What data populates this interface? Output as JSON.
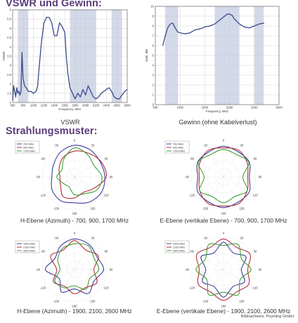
{
  "headings": {
    "main": "VSWR und Gewinn:",
    "pattern": "Strahlungsmuster:"
  },
  "credit": "Bildnachweis: Poynting GmbH",
  "colors": {
    "heading": "#5a3d7a",
    "band": "#d3d9e8",
    "line": "#3a4a8c",
    "s1": "#3e3fa0",
    "s2": "#b0303c",
    "s3": "#3f9f3a",
    "grid": "#c8c8c8"
  },
  "chart_data": [
    {
      "type": "line",
      "id": "vswr",
      "title": "VSWR",
      "xlabel": "Frequency, MHz",
      "ylabel": "VSWR",
      "xlim": [
        600,
        2800
      ],
      "ylim": [
        1,
        6
      ],
      "xticks": [
        "600",
        "800",
        "1000",
        "1200",
        "1400",
        "1600",
        "1800",
        "2000",
        "2200",
        "2400",
        "2600",
        "2800"
      ],
      "yticks": [
        "1",
        "1.5",
        "2",
        "2.5",
        "3",
        "3.5",
        "4",
        "4.5",
        "5",
        "5.5",
        "6"
      ],
      "bands": [
        [
          700,
          900
        ],
        [
          1700,
          2200
        ],
        [
          2500,
          2700
        ]
      ],
      "x": [
        600,
        620,
        640,
        660,
        680,
        700,
        720,
        740,
        760,
        780,
        800,
        830,
        860,
        900,
        950,
        1000,
        1050,
        1080,
        1100,
        1150,
        1200,
        1250,
        1300,
        1350,
        1400,
        1450,
        1500,
        1550,
        1600,
        1630,
        1660,
        1700,
        1750,
        1800,
        1850,
        1900,
        1950,
        2000,
        2050,
        2100,
        2150,
        2200,
        2250,
        2300,
        2350,
        2400,
        2450,
        2500,
        2550,
        2600,
        2650,
        2700,
        2750,
        2800
      ],
      "y": [
        1.1,
        1.9,
        1.6,
        1.3,
        1.8,
        1.5,
        1.6,
        1.4,
        1.6,
        3.7,
        2.3,
        1.9,
        1.8,
        1.6,
        1.6,
        1.5,
        1.6,
        1.9,
        2.6,
        4.2,
        5.3,
        5.6,
        5.6,
        5.3,
        4.6,
        4.6,
        5.3,
        5.1,
        4.8,
        3.5,
        2.6,
        1.8,
        1.5,
        1.2,
        1.5,
        1.3,
        1.7,
        1.4,
        1.9,
        1.6,
        1.3,
        1.2,
        1.3,
        1.5,
        1.6,
        1.7,
        1.8,
        1.6,
        1.3,
        1.2,
        1.2,
        1.4,
        1.6,
        1.7
      ]
    },
    {
      "type": "line",
      "id": "gain",
      "title": "Gewinn (ohne Kabelverlust)",
      "xlabel": "Frequency, MHz",
      "ylabel": "Gain, dBi",
      "xlim": [
        500,
        3000
      ],
      "ylim": [
        0,
        10
      ],
      "xticks": [
        "500",
        "1000",
        "1500",
        "2000",
        "2500",
        "3000"
      ],
      "yticks": [
        "0",
        "1",
        "2",
        "3",
        "4",
        "5",
        "6",
        "7",
        "8",
        "9",
        "10"
      ],
      "bands": [
        [
          700,
          960
        ],
        [
          1700,
          2200
        ],
        [
          2500,
          2690
        ]
      ],
      "x": [
        650,
        700,
        750,
        800,
        850,
        900,
        950,
        1000,
        1100,
        1200,
        1300,
        1400,
        1500,
        1600,
        1700,
        1800,
        1900,
        1950,
        2000,
        2050,
        2100,
        2200,
        2300,
        2400,
        2500,
        2600,
        2700
      ],
      "y": [
        6.0,
        7.0,
        7.8,
        8.2,
        8.3,
        7.8,
        7.4,
        7.3,
        7.2,
        7.3,
        7.6,
        7.7,
        7.9,
        8.0,
        8.2,
        8.6,
        9.0,
        9.2,
        9.2,
        9.1,
        8.7,
        8.2,
        7.9,
        7.8,
        8.0,
        8.2,
        8.3
      ]
    },
    {
      "type": "polar",
      "id": "h-low",
      "title": "H-Ebene (Azimuth) - 700, 900, 1700 MHz",
      "angle_labels": [
        "0",
        "30",
        "60",
        "90",
        "120",
        "150",
        "180",
        "-150",
        "-120",
        "-90",
        "-60",
        "-30"
      ],
      "series": [
        {
          "name": "700 MHz",
          "r": [
            0.98,
            0.97,
            0.92,
            0.94,
            0.96,
            0.9,
            0.8,
            0.85,
            0.8,
            0.7,
            0.75,
            0.88
          ]
        },
        {
          "name": "900 MHz",
          "r": [
            0.8,
            0.85,
            0.95,
            0.98,
            0.7,
            0.55,
            0.65,
            0.7,
            0.5,
            0.45,
            0.55,
            0.7
          ]
        },
        {
          "name": "1700 MHz",
          "r": [
            0.9,
            0.8,
            0.7,
            0.85,
            0.8,
            0.6,
            0.55,
            0.35,
            0.4,
            0.55,
            0.45,
            0.65
          ]
        }
      ]
    },
    {
      "type": "polar",
      "id": "e-low",
      "title": "E-Ebene (vertikale Ebene) - 700, 900, 1700 MHz",
      "angle_labels": [
        "0",
        "30",
        "60",
        "90",
        "120",
        "150",
        "180",
        "-150",
        "-120",
        "-90",
        "-60",
        "-30"
      ],
      "series": [
        {
          "name": "700 MHz",
          "r": [
            0.95,
            0.9,
            0.92,
            0.8,
            0.92,
            0.9,
            0.95,
            0.9,
            0.92,
            0.8,
            0.92,
            0.9
          ]
        },
        {
          "name": "900 MHz",
          "r": [
            0.9,
            0.95,
            0.85,
            0.75,
            0.85,
            0.95,
            0.9,
            0.95,
            0.85,
            0.75,
            0.85,
            0.95
          ]
        },
        {
          "name": "1700 MHz",
          "r": [
            0.85,
            0.8,
            0.9,
            0.6,
            0.85,
            0.7,
            0.8,
            0.7,
            0.85,
            0.6,
            0.9,
            0.8
          ]
        }
      ]
    },
    {
      "type": "polar",
      "id": "h-high",
      "title": "H-Ebene (Azimuth) - 1900, 2100, 2600 MHz",
      "angle_labels": [
        "0",
        "30",
        "60",
        "90",
        "120",
        "150",
        "180",
        "-150",
        "-120",
        "-90",
        "-60",
        "-30"
      ],
      "series": [
        {
          "name": "1900 MHz",
          "r": [
            0.95,
            0.9,
            0.8,
            0.9,
            0.7,
            0.85,
            0.6,
            0.8,
            0.55,
            0.9,
            0.7,
            0.85
          ]
        },
        {
          "name": "2100 MHz",
          "r": [
            0.9,
            0.7,
            0.85,
            0.6,
            0.8,
            0.65,
            0.75,
            0.6,
            0.75,
            0.55,
            0.85,
            0.7
          ]
        },
        {
          "name": "2600 MHz",
          "r": [
            0.8,
            0.85,
            0.7,
            0.75,
            0.55,
            0.7,
            0.5,
            0.65,
            0.7,
            0.45,
            0.6,
            0.75
          ]
        }
      ]
    },
    {
      "type": "polar",
      "id": "e-high",
      "title": "E-Ebene (vertikale Ebene) - 1900, 2100, 2600 MHz",
      "angle_labels": [
        "0",
        "30",
        "60",
        "90",
        "120",
        "150",
        "180",
        "-150",
        "-120",
        "-90",
        "-60",
        "-30"
      ],
      "series": [
        {
          "name": "1900 MHz",
          "r": [
            0.85,
            0.6,
            0.8,
            0.55,
            0.75,
            0.6,
            0.85,
            0.6,
            0.75,
            0.55,
            0.8,
            0.6
          ]
        },
        {
          "name": "2100 MHz",
          "r": [
            0.95,
            0.8,
            0.95,
            0.75,
            0.9,
            0.8,
            0.95,
            0.8,
            0.9,
            0.75,
            0.95,
            0.8
          ]
        },
        {
          "name": "2600 MHz",
          "r": [
            0.75,
            0.9,
            0.65,
            0.85,
            0.6,
            0.9,
            0.7,
            0.9,
            0.6,
            0.85,
            0.65,
            0.9
          ]
        }
      ]
    }
  ]
}
